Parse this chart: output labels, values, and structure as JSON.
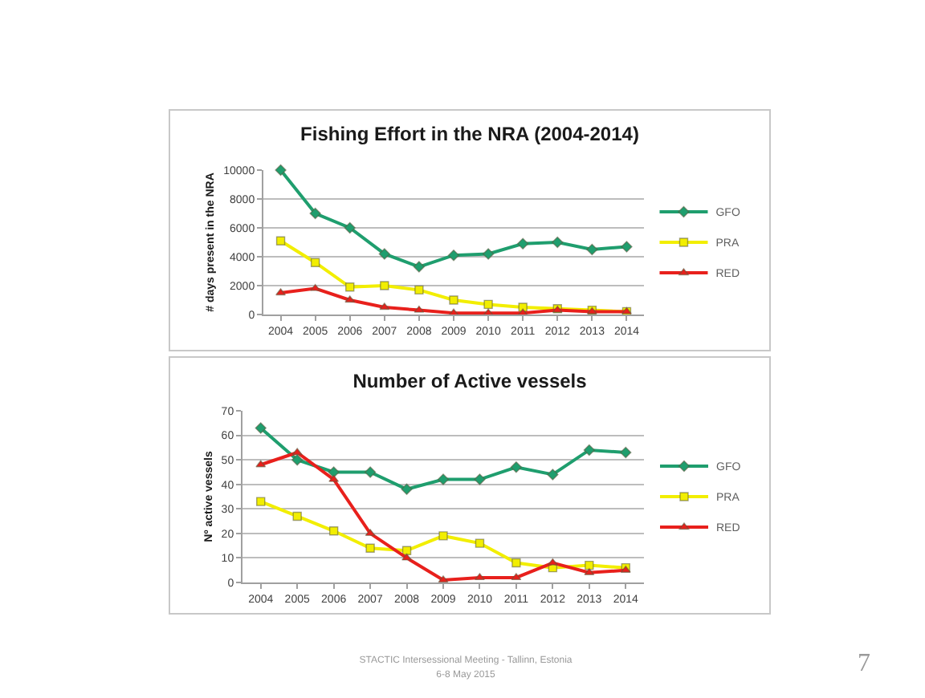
{
  "chart_data": [
    {
      "type": "line",
      "title": "Fishing Effort in the NRA (2004-2014)",
      "ylabel": "# days present in the NRA",
      "categories": [
        "2004",
        "2005",
        "2006",
        "2007",
        "2008",
        "2009",
        "2010",
        "2011",
        "2012",
        "2013",
        "2014"
      ],
      "series": [
        {
          "name": "GFO",
          "color": "#1f9e6e",
          "marker": "diamond",
          "values": [
            10000,
            7000,
            6000,
            4200,
            3300,
            4100,
            4200,
            4900,
            5000,
            4500,
            4700
          ]
        },
        {
          "name": "PRA",
          "color": "#f2ee00",
          "marker": "square",
          "values": [
            5100,
            3600,
            1900,
            2000,
            1700,
            1000,
            700,
            500,
            400,
            300,
            200
          ]
        },
        {
          "name": "RED",
          "color": "#e8201c",
          "marker": "triangle",
          "values": [
            1500,
            1800,
            1000,
            500,
            300,
            100,
            100,
            100,
            300,
            200,
            200
          ]
        }
      ],
      "ylim": [
        0,
        10000
      ],
      "yticks": [
        0,
        2000,
        4000,
        6000,
        8000,
        10000
      ],
      "grid": "y",
      "legend": "right"
    },
    {
      "type": "line",
      "title": "Number of Active vessels",
      "ylabel": "Nº active vessels",
      "categories": [
        "2004",
        "2005",
        "2006",
        "2007",
        "2008",
        "2009",
        "2010",
        "2011",
        "2012",
        "2013",
        "2014"
      ],
      "series": [
        {
          "name": "GFO",
          "color": "#1f9e6e",
          "marker": "diamond",
          "values": [
            63,
            50,
            45,
            45,
            38,
            42,
            42,
            47,
            44,
            54,
            53
          ]
        },
        {
          "name": "PRA",
          "color": "#f2ee00",
          "marker": "square",
          "values": [
            33,
            27,
            21,
            14,
            13,
            19,
            16,
            8,
            6,
            7,
            6
          ]
        },
        {
          "name": "RED",
          "color": "#e8201c",
          "marker": "triangle",
          "values": [
            48,
            53,
            42,
            20,
            10,
            1,
            2,
            2,
            8,
            4,
            5
          ]
        }
      ],
      "ylim": [
        0,
        70
      ],
      "yticks": [
        0,
        10,
        20,
        30,
        40,
        50,
        60,
        70
      ],
      "grid": "y",
      "legend": "right",
      "annotations": [
        "STACTIC Intersessional Meeting - Tallinn, Estonia\n6-8 May 2015",
        "7"
      ]
    }
  ]
}
